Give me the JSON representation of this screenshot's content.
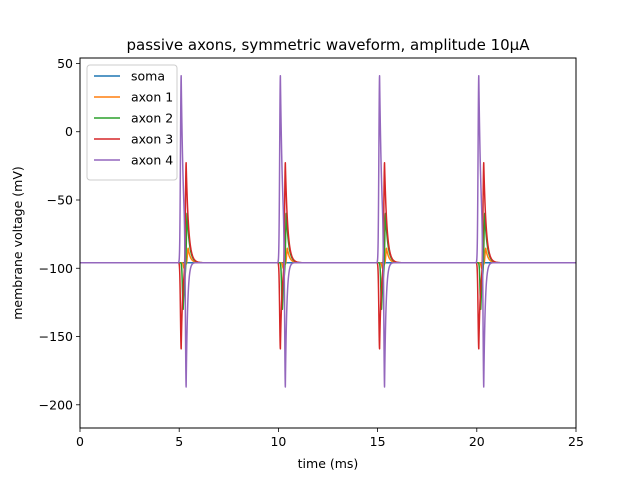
{
  "chart_data": {
    "type": "line",
    "title": "passive axons, symmetric waveform, amplitude 10μA",
    "xlabel": "time (ms)",
    "ylabel": "membrane voltage (mV)",
    "xlim": [
      0,
      25
    ],
    "ylim": [
      -217,
      54
    ],
    "xticks": [
      0,
      5,
      10,
      15,
      20,
      25
    ],
    "yticks": [
      50,
      0,
      -50,
      -100,
      -150,
      -200
    ],
    "x_tick_labels": [
      "0",
      "5",
      "10",
      "15",
      "20",
      "25"
    ],
    "y_tick_labels": [
      "50",
      "0",
      "−50",
      "−100",
      "−150",
      "−200"
    ],
    "grid": false,
    "legend_position": "upper-left",
    "baseline": -96,
    "pulse_times": [
      5,
      10,
      15,
      20
    ],
    "series": [
      {
        "name": "soma",
        "color": "#1f77b4",
        "min": -96,
        "max": -96,
        "t_min": 5.3,
        "t_max": 5.3
      },
      {
        "name": "axon 1",
        "color": "#ff7f0e",
        "min": -100,
        "max": -85,
        "t_min": 5.25,
        "t_max": 5.45
      },
      {
        "name": "axon 2",
        "color": "#2ca02c",
        "min": -130,
        "max": -57,
        "t_min": 5.2,
        "t_max": 5.4
      },
      {
        "name": "axon 3",
        "color": "#d62728",
        "min": -159,
        "max": -20,
        "t_min": 5.1,
        "t_max": 5.35
      },
      {
        "name": "axon 4",
        "color": "#9467bd",
        "min": -204,
        "max": 41,
        "t_min": 5.35,
        "t_max": 5.1
      }
    ]
  }
}
